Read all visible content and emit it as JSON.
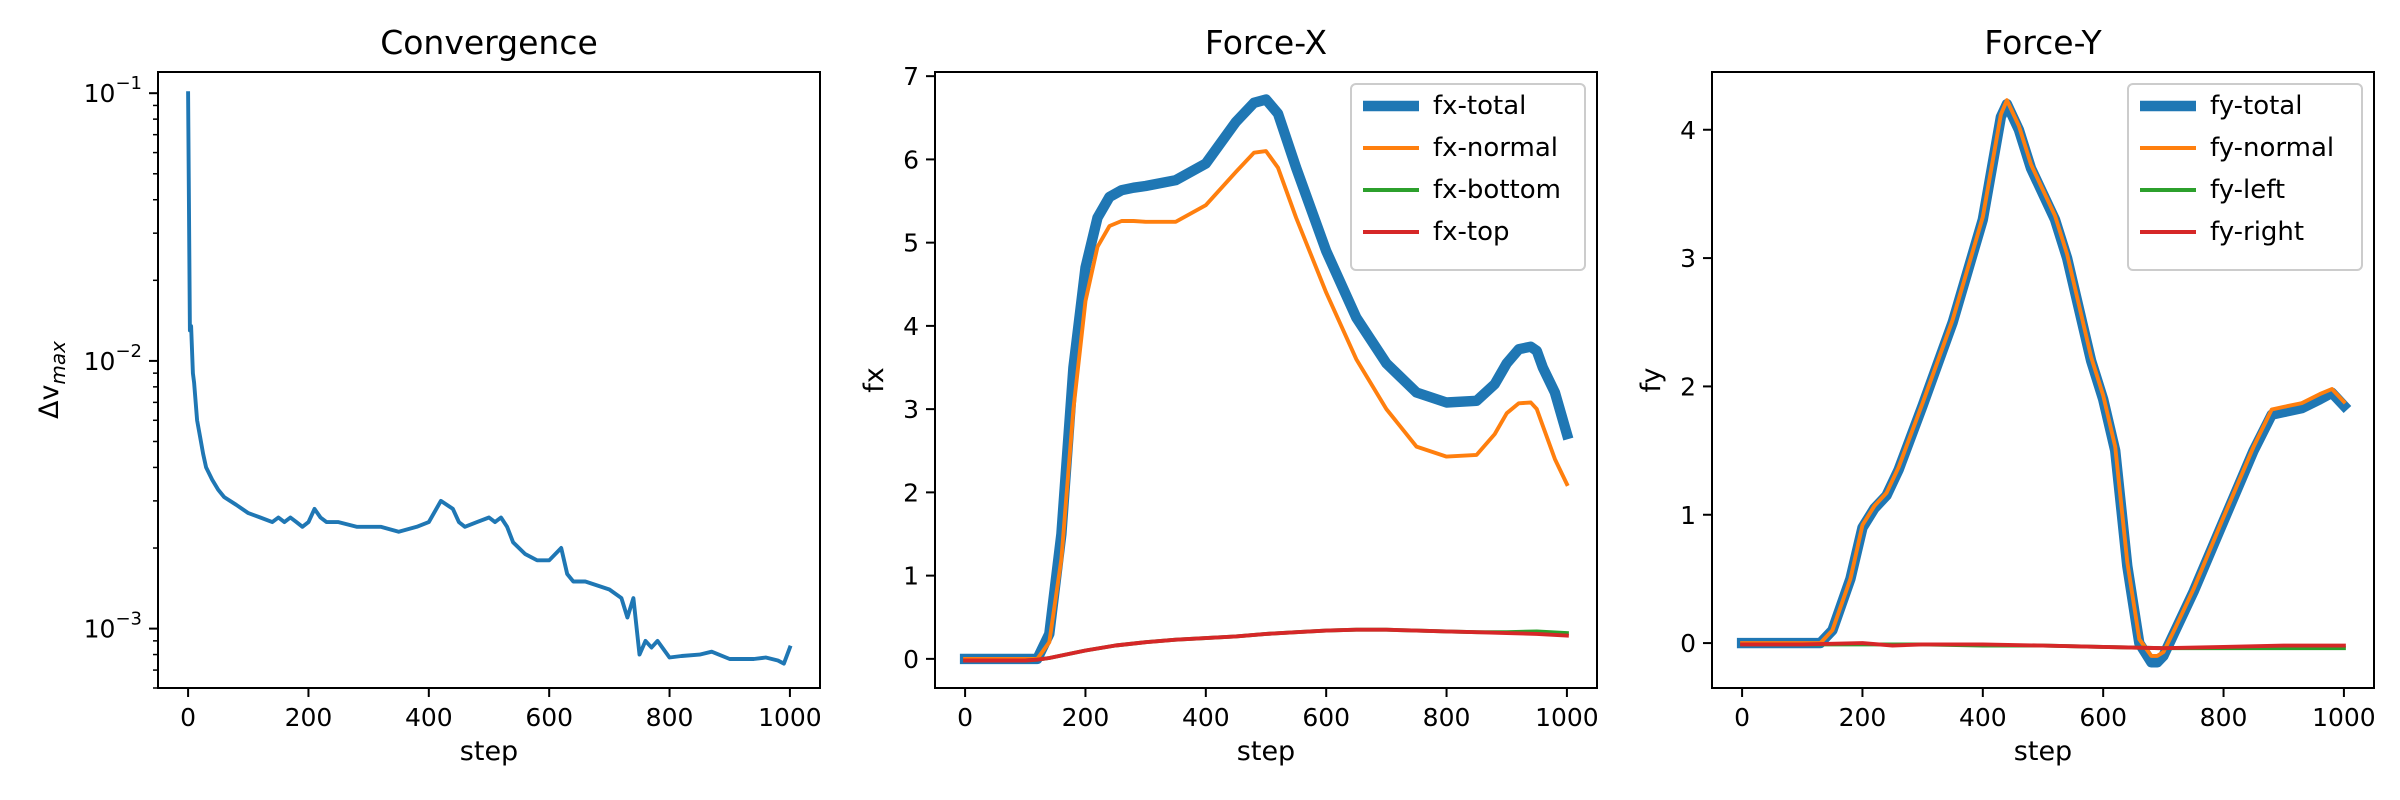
{
  "chart_data": [
    {
      "type": "line",
      "title": "Convergence",
      "xlabel": "step",
      "ylabel": "Δv_max",
      "yscale": "log",
      "xlim": [
        -50,
        1050
      ],
      "ylim": [
        0.0006,
        0.12
      ],
      "xticks": [
        0,
        200,
        400,
        600,
        800,
        1000
      ],
      "yticks": [
        0.001,
        0.01,
        0.1
      ],
      "ytick_labels": [
        {
          "base": "10",
          "exp": "−3"
        },
        {
          "base": "10",
          "exp": "−2"
        },
        {
          "base": "10",
          "exp": "−1"
        }
      ],
      "grid": false,
      "legend": null,
      "series": [
        {
          "color": "#1f77b4",
          "width": 1.5,
          "x": [
            0,
            3,
            5,
            8,
            10,
            15,
            20,
            25,
            30,
            40,
            50,
            60,
            80,
            100,
            120,
            140,
            150,
            160,
            170,
            180,
            190,
            200,
            210,
            220,
            230,
            250,
            280,
            300,
            320,
            350,
            380,
            400,
            420,
            440,
            450,
            460,
            480,
            500,
            510,
            520,
            530,
            540,
            560,
            580,
            600,
            620,
            630,
            640,
            660,
            700,
            720,
            730,
            740,
            750,
            760,
            770,
            780,
            800,
            820,
            850,
            870,
            900,
            940,
            960,
            980,
            990,
            1000
          ],
          "y": [
            0.1,
            0.013,
            0.0135,
            0.009,
            0.0083,
            0.006,
            0.0052,
            0.0045,
            0.004,
            0.0036,
            0.0033,
            0.0031,
            0.0029,
            0.0027,
            0.0026,
            0.0025,
            0.0026,
            0.0025,
            0.0026,
            0.0025,
            0.0024,
            0.0025,
            0.0028,
            0.0026,
            0.0025,
            0.0025,
            0.0024,
            0.0024,
            0.0024,
            0.0023,
            0.0024,
            0.0025,
            0.003,
            0.0028,
            0.0025,
            0.0024,
            0.0025,
            0.0026,
            0.0025,
            0.0026,
            0.0024,
            0.0021,
            0.0019,
            0.0018,
            0.0018,
            0.002,
            0.0016,
            0.0015,
            0.0015,
            0.0014,
            0.0013,
            0.0011,
            0.0013,
            0.0008,
            0.0009,
            0.00085,
            0.0009,
            0.00078,
            0.00079,
            0.0008,
            0.00082,
            0.00077,
            0.00077,
            0.00078,
            0.00076,
            0.00074,
            0.00085
          ]
        }
      ]
    },
    {
      "type": "line",
      "title": "Force-X",
      "xlabel": "step",
      "ylabel": "fx",
      "xlim": [
        -50,
        1050
      ],
      "ylim": [
        -0.35,
        7.05
      ],
      "xticks": [
        0,
        200,
        400,
        600,
        800,
        1000
      ],
      "yticks": [
        0,
        1,
        2,
        3,
        4,
        5,
        6,
        7
      ],
      "grid": false,
      "legend": "top-right",
      "series": [
        {
          "name": "fx-total",
          "color": "#1f77b4",
          "width": 4,
          "x": [
            0,
            100,
            120,
            140,
            160,
            180,
            200,
            220,
            240,
            260,
            280,
            300,
            350,
            400,
            450,
            480,
            500,
            520,
            550,
            600,
            650,
            700,
            750,
            800,
            850,
            880,
            900,
            920,
            940,
            950,
            960,
            980,
            1000
          ],
          "y": [
            0,
            0,
            0,
            0.3,
            1.5,
            3.5,
            4.7,
            5.3,
            5.55,
            5.63,
            5.66,
            5.68,
            5.75,
            5.95,
            6.45,
            6.68,
            6.72,
            6.55,
            5.9,
            4.9,
            4.1,
            3.55,
            3.2,
            3.08,
            3.1,
            3.3,
            3.55,
            3.72,
            3.75,
            3.7,
            3.5,
            3.2,
            2.7
          ]
        },
        {
          "name": "fx-normal",
          "color": "#ff7f0e",
          "width": 1.5,
          "x": [
            0,
            100,
            120,
            140,
            160,
            180,
            200,
            220,
            240,
            260,
            280,
            300,
            350,
            400,
            450,
            480,
            500,
            520,
            550,
            600,
            650,
            700,
            750,
            800,
            850,
            880,
            900,
            920,
            940,
            950,
            960,
            980,
            1000
          ],
          "y": [
            0,
            0,
            0,
            0.2,
            1.2,
            3.0,
            4.3,
            4.95,
            5.2,
            5.26,
            5.26,
            5.25,
            5.25,
            5.45,
            5.85,
            6.08,
            6.1,
            5.9,
            5.3,
            4.4,
            3.6,
            3.0,
            2.55,
            2.43,
            2.45,
            2.7,
            2.95,
            3.07,
            3.08,
            3.0,
            2.8,
            2.4,
            2.1
          ]
        },
        {
          "name": "fx-bottom",
          "color": "#2ca02c",
          "width": 1.5,
          "x": [
            0,
            100,
            120,
            140,
            160,
            180,
            200,
            250,
            300,
            350,
            400,
            450,
            500,
            550,
            600,
            650,
            700,
            750,
            800,
            850,
            900,
            950,
            1000
          ],
          "y": [
            -0.02,
            -0.02,
            -0.01,
            0.01,
            0.04,
            0.07,
            0.1,
            0.16,
            0.2,
            0.23,
            0.25,
            0.27,
            0.3,
            0.32,
            0.34,
            0.35,
            0.35,
            0.34,
            0.33,
            0.32,
            0.32,
            0.33,
            0.31
          ]
        },
        {
          "name": "fx-top",
          "color": "#d62728",
          "width": 1.5,
          "x": [
            0,
            100,
            120,
            140,
            160,
            180,
            200,
            250,
            300,
            350,
            400,
            450,
            500,
            550,
            600,
            650,
            700,
            750,
            800,
            850,
            900,
            950,
            1000
          ],
          "y": [
            -0.02,
            -0.02,
            -0.01,
            0.01,
            0.04,
            0.07,
            0.1,
            0.16,
            0.2,
            0.23,
            0.25,
            0.27,
            0.3,
            0.32,
            0.34,
            0.35,
            0.35,
            0.34,
            0.33,
            0.32,
            0.31,
            0.3,
            0.28
          ]
        }
      ]
    },
    {
      "type": "line",
      "title": "Force-Y",
      "xlabel": "step",
      "ylabel": "fy",
      "xlim": [
        -50,
        1050
      ],
      "ylim": [
        -0.35,
        4.45
      ],
      "xticks": [
        0,
        200,
        400,
        600,
        800,
        1000
      ],
      "yticks": [
        0,
        1,
        2,
        3,
        4
      ],
      "grid": false,
      "legend": "top-right",
      "series": [
        {
          "name": "fy-total",
          "color": "#1f77b4",
          "width": 4,
          "x": [
            0,
            130,
            150,
            180,
            200,
            220,
            240,
            260,
            300,
            350,
            400,
            430,
            440,
            460,
            480,
            500,
            520,
            540,
            560,
            580,
            600,
            620,
            640,
            660,
            680,
            690,
            700,
            720,
            750,
            800,
            850,
            880,
            900,
            930,
            960,
            980,
            1000
          ],
          "y": [
            0,
            0,
            0.1,
            0.5,
            0.9,
            1.05,
            1.15,
            1.35,
            1.85,
            2.5,
            3.3,
            4.1,
            4.2,
            4.0,
            3.7,
            3.5,
            3.3,
            3.0,
            2.6,
            2.2,
            1.9,
            1.5,
            0.6,
            0.0,
            -0.15,
            -0.15,
            -0.1,
            0.1,
            0.4,
            0.95,
            1.5,
            1.78,
            1.8,
            1.83,
            1.9,
            1.95,
            1.85
          ]
        },
        {
          "name": "fy-normal",
          "color": "#ff7f0e",
          "width": 1.5,
          "x": [
            0,
            130,
            150,
            180,
            200,
            220,
            240,
            260,
            300,
            350,
            400,
            430,
            440,
            460,
            480,
            500,
            520,
            540,
            560,
            580,
            600,
            620,
            640,
            660,
            680,
            690,
            700,
            720,
            750,
            800,
            850,
            880,
            900,
            930,
            960,
            980,
            1000
          ],
          "y": [
            0,
            0,
            0.1,
            0.5,
            0.92,
            1.07,
            1.17,
            1.37,
            1.87,
            2.52,
            3.32,
            4.12,
            4.23,
            4.03,
            3.73,
            3.53,
            3.33,
            3.03,
            2.63,
            2.23,
            1.93,
            1.53,
            0.63,
            0.03,
            -0.1,
            -0.1,
            -0.07,
            0.12,
            0.42,
            0.98,
            1.53,
            1.82,
            1.84,
            1.87,
            1.94,
            1.98,
            1.88
          ]
        },
        {
          "name": "fy-left",
          "color": "#2ca02c",
          "width": 1.5,
          "x": [
            0,
            100,
            200,
            300,
            400,
            500,
            600,
            700,
            800,
            900,
            1000
          ],
          "y": [
            -0.01,
            -0.01,
            -0.01,
            -0.01,
            -0.02,
            -0.02,
            -0.03,
            -0.04,
            -0.04,
            -0.04,
            -0.04
          ]
        },
        {
          "name": "fy-right",
          "color": "#d62728",
          "width": 1.5,
          "x": [
            0,
            100,
            200,
            250,
            300,
            400,
            500,
            600,
            700,
            800,
            900,
            1000
          ],
          "y": [
            -0.01,
            -0.01,
            0.0,
            -0.02,
            -0.01,
            -0.01,
            -0.02,
            -0.03,
            -0.04,
            -0.03,
            -0.02,
            -0.02
          ]
        }
      ]
    }
  ]
}
